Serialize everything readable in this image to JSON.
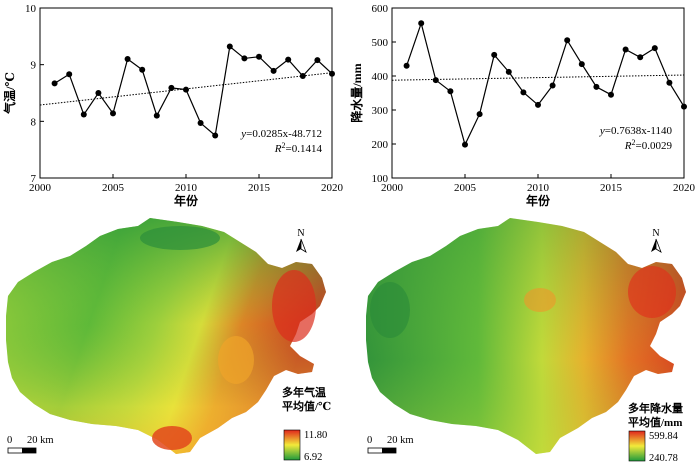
{
  "chart_data": [
    {
      "type": "line",
      "ylabel": "气温/℃",
      "xlabel": "年份",
      "xlim": [
        2000,
        2020
      ],
      "ylim": [
        7,
        10
      ],
      "xticks": [
        "2000",
        "2005",
        "2010",
        "2015",
        "2020"
      ],
      "yticks": [
        "7",
        "8",
        "9",
        "10"
      ],
      "x": [
        2001,
        2002,
        2003,
        2004,
        2005,
        2006,
        2007,
        2008,
        2009,
        2010,
        2011,
        2012,
        2013,
        2014,
        2015,
        2016,
        2017,
        2018,
        2019,
        2020
      ],
      "values": [
        8.67,
        8.83,
        8.12,
        8.5,
        8.14,
        9.1,
        8.91,
        8.1,
        8.59,
        8.56,
        7.97,
        7.75,
        9.32,
        9.11,
        9.14,
        8.89,
        9.09,
        8.8,
        9.08,
        8.84
      ],
      "trend": {
        "slope": 0.0285,
        "intercept": -48.712
      },
      "equation_y": "y",
      "equation_rhs": "=0.0285x-48.712",
      "r2_label": "R",
      "r2_sup": "2",
      "r2_value": "=0.1414"
    },
    {
      "type": "line",
      "ylabel": "降水量/mm",
      "xlabel": "年份",
      "xlim": [
        2000,
        2020
      ],
      "ylim": [
        100,
        600
      ],
      "xticks": [
        "2000",
        "2005",
        "2010",
        "2015",
        "2020"
      ],
      "yticks": [
        "100",
        "200",
        "300",
        "400",
        "500",
        "600"
      ],
      "x": [
        2001,
        2002,
        2003,
        2004,
        2005,
        2006,
        2007,
        2008,
        2009,
        2010,
        2011,
        2012,
        2013,
        2014,
        2015,
        2016,
        2017,
        2018,
        2019,
        2020
      ],
      "values": [
        430,
        555,
        388,
        355,
        198,
        288,
        462,
        412,
        352,
        315,
        372,
        505,
        435,
        368,
        345,
        478,
        455,
        482,
        380,
        310
      ],
      "trend": {
        "slope": 0.7638,
        "intercept": -1140
      },
      "equation_y": "y",
      "equation_rhs": "=0.7638x-1140",
      "r2_label": "R",
      "r2_sup": "2",
      "r2_value": "=0.0029"
    }
  ],
  "maps": [
    {
      "north": "N",
      "legend_title_1": "多年气温",
      "legend_title_2": "平均值/℃",
      "legend_max": "11.80",
      "legend_min": "6.92",
      "scale_zero": "0",
      "scale_label": "20 km",
      "colors": {
        "low": "#1f9a3c",
        "mid": "#f2ea3a",
        "high": "#e0251c"
      }
    },
    {
      "north": "N",
      "legend_title_1": "多年降水量",
      "legend_title_2": "平均值/mm",
      "legend_max": "599.84",
      "legend_min": "240.78",
      "scale_zero": "0",
      "scale_label": "20 km",
      "colors": {
        "low": "#1f9a3c",
        "mid": "#f2ea3a",
        "high": "#e0251c"
      }
    }
  ]
}
